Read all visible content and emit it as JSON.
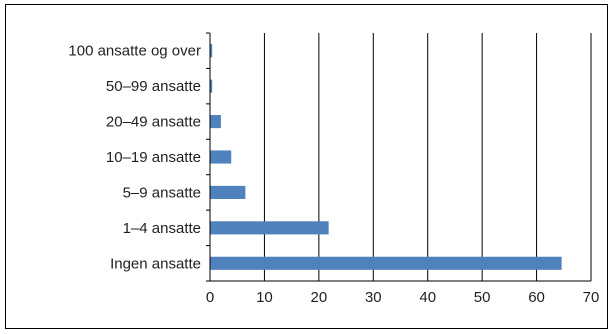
{
  "chart_data": {
    "type": "bar",
    "orientation": "horizontal",
    "title": "",
    "xlabel": "",
    "ylabel": "",
    "categories": [
      "100 ansatte og over",
      "50–99 ansatte",
      "20–49 ansatte",
      "10–19 ansatte",
      "5–9 ansatte",
      "1–4 ansatte",
      "Ingen ansatte"
    ],
    "values": [
      0.4,
      0.4,
      2.0,
      3.9,
      6.5,
      21.8,
      64.6
    ],
    "xlim": [
      0,
      70
    ],
    "xticks": [
      "0",
      "10",
      "20",
      "30",
      "40",
      "50",
      "60",
      "70"
    ],
    "grid": "vertical",
    "legend": "none",
    "bar_color": "#4f81bd"
  }
}
